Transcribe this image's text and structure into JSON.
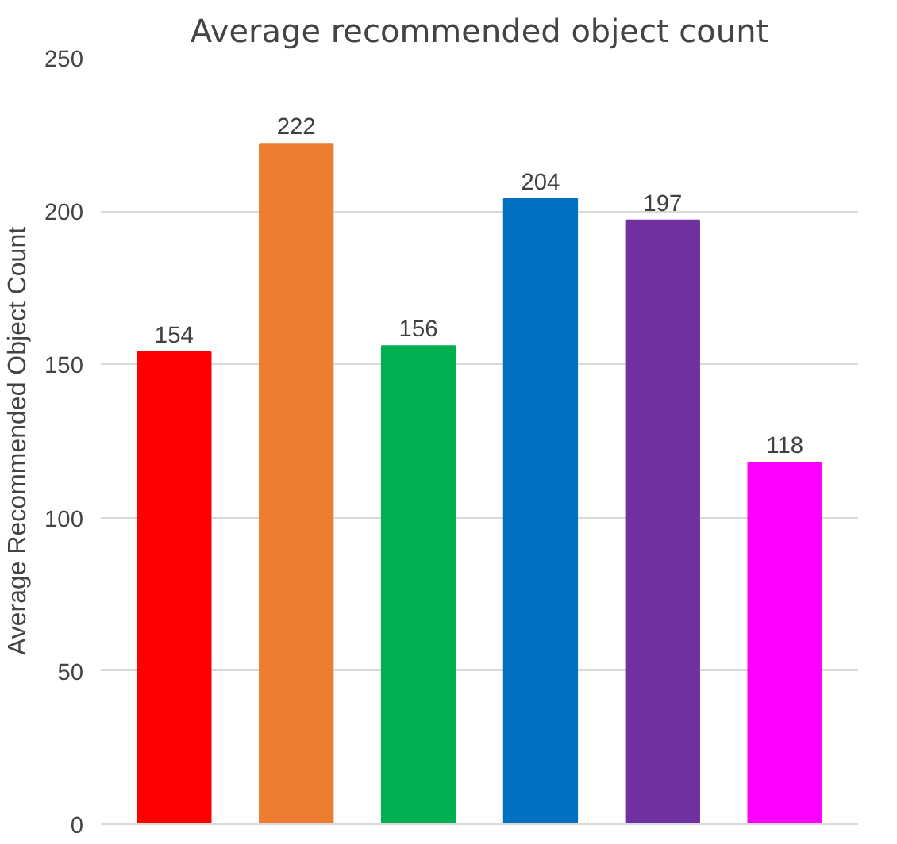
{
  "chart_data": {
    "type": "bar",
    "title": "Average recommended object count",
    "ylabel": "Average Recommended Object Count",
    "categories": [
      null,
      null,
      null,
      null,
      null,
      null
    ],
    "values": [
      154,
      222,
      156,
      204,
      197,
      118
    ],
    "colors": [
      "#ff0000",
      "#ed7d31",
      "#00b050",
      "#0070c0",
      "#7030a0",
      "#ff00ff"
    ],
    "ylim": [
      0,
      250
    ],
    "yticks": [
      0,
      50,
      100,
      150,
      200,
      250
    ],
    "grid": "y",
    "data_labels": true
  }
}
